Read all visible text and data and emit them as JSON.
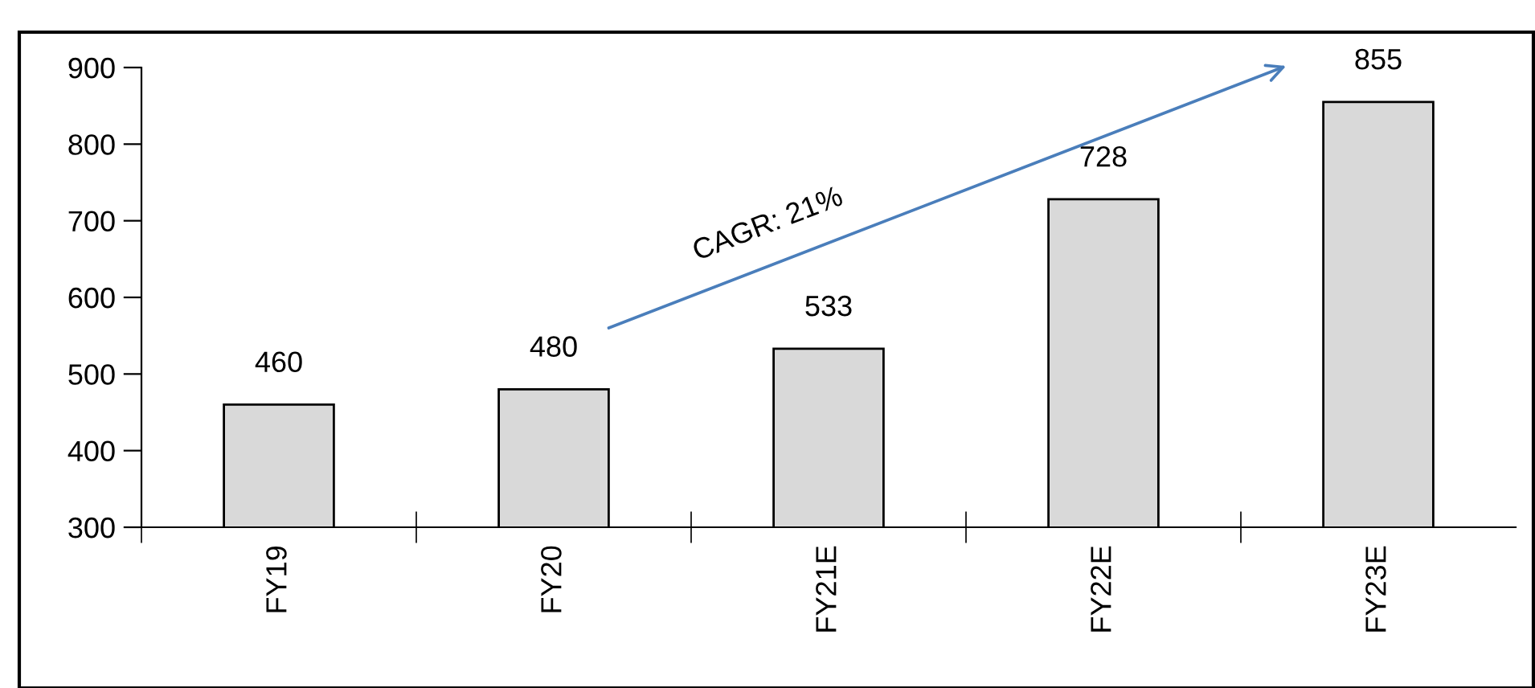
{
  "chart_data": {
    "type": "bar",
    "categories": [
      "FY19",
      "FY20",
      "FY21E",
      "FY22E",
      "FY23E"
    ],
    "values": [
      460,
      480,
      533,
      728,
      855
    ],
    "color": "#d9d9d9",
    "ylim": [
      300,
      900
    ],
    "yticks": [
      300,
      400,
      500,
      600,
      700,
      800,
      900
    ],
    "grid": false,
    "data_labels": true,
    "annotations": [
      "CAGR: 21%"
    ]
  }
}
